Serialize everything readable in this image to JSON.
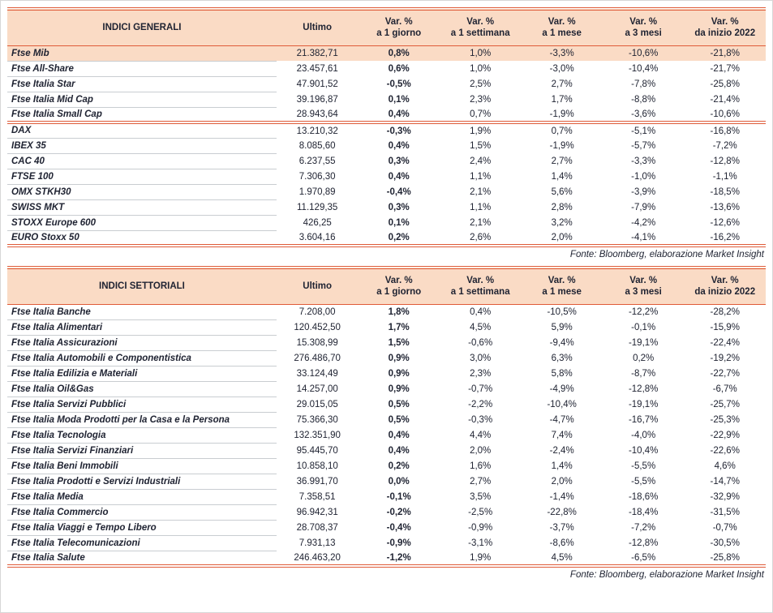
{
  "colors": {
    "accent_line": "#DF5B39",
    "header_background": "#FADBC5",
    "highlight_row_background": "#FADBC5",
    "text": "#202433",
    "row_divider": "#C9CDD1"
  },
  "chart_data": [
    {
      "type": "table",
      "title": "INDICI GENERALI",
      "columns": [
        {
          "line1": "Ultimo",
          "line2": ""
        },
        {
          "line1": "Var. %",
          "line2": "a 1 giorno"
        },
        {
          "line1": "Var. %",
          "line2": "a 1 settimana"
        },
        {
          "line1": "Var. %",
          "line2": "a 1 mese"
        },
        {
          "line1": "Var. %",
          "line2": "a 3 mesi"
        },
        {
          "line1": "Var. %",
          "line2": "da inizio 2022"
        }
      ],
      "groups": [
        {
          "rows": [
            {
              "name": "Ftse Mib",
              "highlight": true,
              "values": [
                "21.382,71",
                "0,8%",
                "1,0%",
                "-3,3%",
                "-10,6%",
                "-21,8%"
              ]
            },
            {
              "name": "Ftse All-Share",
              "values": [
                "23.457,61",
                "0,6%",
                "1,0%",
                "-3,0%",
                "-10,4%",
                "-21,7%"
              ]
            },
            {
              "name": "Ftse Italia Star",
              "values": [
                "47.901,52",
                "-0,5%",
                "2,5%",
                "2,7%",
                "-7,8%",
                "-25,8%"
              ]
            },
            {
              "name": "Ftse Italia Mid Cap",
              "values": [
                "39.196,87",
                "0,1%",
                "2,3%",
                "1,7%",
                "-8,8%",
                "-21,4%"
              ]
            },
            {
              "name": "Ftse Italia Small Cap",
              "values": [
                "28.943,64",
                "0,4%",
                "0,7%",
                "-1,9%",
                "-3,6%",
                "-10,6%"
              ]
            }
          ]
        },
        {
          "rows": [
            {
              "name": "DAX",
              "values": [
                "13.210,32",
                "-0,3%",
                "1,9%",
                "0,7%",
                "-5,1%",
                "-16,8%"
              ]
            },
            {
              "name": "IBEX 35",
              "values": [
                "8.085,60",
                "0,4%",
                "1,5%",
                "-1,9%",
                "-5,7%",
                "-7,2%"
              ]
            },
            {
              "name": "CAC 40",
              "values": [
                "6.237,55",
                "0,3%",
                "2,4%",
                "2,7%",
                "-3,3%",
                "-12,8%"
              ]
            },
            {
              "name": "FTSE 100",
              "values": [
                "7.306,30",
                "0,4%",
                "1,1%",
                "1,4%",
                "-1,0%",
                "-1,1%"
              ]
            },
            {
              "name": "OMX STKH30",
              "values": [
                "1.970,89",
                "-0,4%",
                "2,1%",
                "5,6%",
                "-3,9%",
                "-18,5%"
              ]
            },
            {
              "name": "SWISS MKT",
              "values": [
                "11.129,35",
                "0,3%",
                "1,1%",
                "2,8%",
                "-7,9%",
                "-13,6%"
              ]
            },
            {
              "name": "STOXX Europe 600",
              "values": [
                "426,25",
                "0,1%",
                "2,1%",
                "3,2%",
                "-4,2%",
                "-12,6%"
              ]
            },
            {
              "name": "EURO Stoxx 50",
              "values": [
                "3.604,16",
                "0,2%",
                "2,6%",
                "2,0%",
                "-4,1%",
                "-16,2%"
              ]
            }
          ]
        }
      ],
      "source": "Fonte: Bloomberg, elaborazione Market Insight"
    },
    {
      "type": "table",
      "title": "INDICI SETTORIALI",
      "columns": [
        {
          "line1": "Ultimo",
          "line2": ""
        },
        {
          "line1": "Var. %",
          "line2": "a 1 giorno"
        },
        {
          "line1": "Var. %",
          "line2": "a 1 settimana"
        },
        {
          "line1": "Var. %",
          "line2": "a 1 mese"
        },
        {
          "line1": "Var. %",
          "line2": "a 3 mesi"
        },
        {
          "line1": "Var. %",
          "line2": "da inizio 2022"
        }
      ],
      "groups": [
        {
          "rows": [
            {
              "name": "Ftse Italia Banche",
              "values": [
                "7.208,00",
                "1,8%",
                "0,4%",
                "-10,5%",
                "-12,2%",
                "-28,2%"
              ]
            },
            {
              "name": "Ftse Italia Alimentari",
              "values": [
                "120.452,50",
                "1,7%",
                "4,5%",
                "5,9%",
                "-0,1%",
                "-15,9%"
              ]
            },
            {
              "name": "Ftse Italia Assicurazioni",
              "values": [
                "15.308,99",
                "1,5%",
                "-0,6%",
                "-9,4%",
                "-19,1%",
                "-22,4%"
              ]
            },
            {
              "name": "Ftse Italia Automobili e Componentistica",
              "values": [
                "276.486,70",
                "0,9%",
                "3,0%",
                "6,3%",
                "0,2%",
                "-19,2%"
              ]
            },
            {
              "name": "Ftse Italia Edilizia e Materiali",
              "values": [
                "33.124,49",
                "0,9%",
                "2,3%",
                "5,8%",
                "-8,7%",
                "-22,7%"
              ]
            },
            {
              "name": "Ftse Italia Oil&Gas",
              "values": [
                "14.257,00",
                "0,9%",
                "-0,7%",
                "-4,9%",
                "-12,8%",
                "-6,7%"
              ]
            },
            {
              "name": "Ftse Italia Servizi Pubblici",
              "values": [
                "29.015,05",
                "0,5%",
                "-2,2%",
                "-10,4%",
                "-19,1%",
                "-25,7%"
              ]
            },
            {
              "name": "Ftse Italia Moda Prodotti per la Casa e la Persona",
              "values": [
                "75.366,30",
                "0,5%",
                "-0,3%",
                "-4,7%",
                "-16,7%",
                "-25,3%"
              ]
            },
            {
              "name": "Ftse Italia Tecnologia",
              "values": [
                "132.351,90",
                "0,4%",
                "4,4%",
                "7,4%",
                "-4,0%",
                "-22,9%"
              ]
            },
            {
              "name": "Ftse Italia Servizi Finanziari",
              "values": [
                "95.445,70",
                "0,4%",
                "2,0%",
                "-2,4%",
                "-10,4%",
                "-22,6%"
              ]
            },
            {
              "name": "Ftse Italia Beni Immobili",
              "values": [
                "10.858,10",
                "0,2%",
                "1,6%",
                "1,4%",
                "-5,5%",
                "4,6%"
              ]
            },
            {
              "name": "Ftse Italia Prodotti e Servizi Industriali",
              "values": [
                "36.991,70",
                "0,0%",
                "2,7%",
                "2,0%",
                "-5,5%",
                "-14,7%"
              ]
            },
            {
              "name": "Ftse Italia Media",
              "values": [
                "7.358,51",
                "-0,1%",
                "3,5%",
                "-1,4%",
                "-18,6%",
                "-32,9%"
              ]
            },
            {
              "name": "Ftse Italia Commercio",
              "values": [
                "96.942,31",
                "-0,2%",
                "-2,5%",
                "-22,8%",
                "-18,4%",
                "-31,5%"
              ]
            },
            {
              "name": "Ftse Italia Viaggi e Tempo Libero",
              "values": [
                "28.708,37",
                "-0,4%",
                "-0,9%",
                "-3,7%",
                "-7,2%",
                "-0,7%"
              ]
            },
            {
              "name": "Ftse Italia Telecomunicazioni",
              "values": [
                "7.931,13",
                "-0,9%",
                "-3,1%",
                "-8,6%",
                "-12,8%",
                "-30,5%"
              ]
            },
            {
              "name": "Ftse Italia Salute",
              "values": [
                "246.463,20",
                "-1,2%",
                "1,9%",
                "4,5%",
                "-6,5%",
                "-25,8%"
              ]
            }
          ]
        }
      ],
      "source": "Fonte: Bloomberg, elaborazione Market Insight"
    }
  ]
}
